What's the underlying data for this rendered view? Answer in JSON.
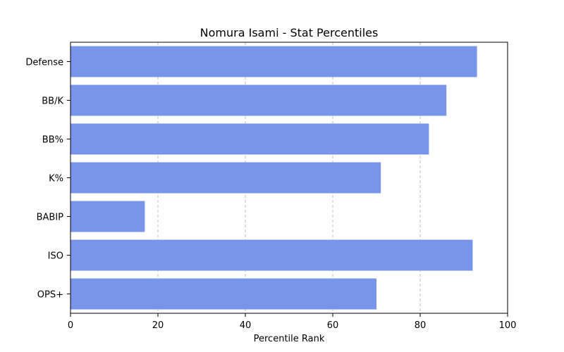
{
  "chart_data": {
    "type": "bar",
    "orientation": "horizontal",
    "title": "Nomura Isami - Stat Percentiles",
    "xlabel": "Percentile Rank",
    "ylabel": "",
    "categories": [
      "Defense",
      "BB/K",
      "BB%",
      "K%",
      "BABIP",
      "ISO",
      "OPS+"
    ],
    "values": [
      93,
      86,
      82,
      71,
      17,
      92,
      70
    ],
    "xlim": [
      0,
      100
    ],
    "xticks": [
      "0",
      "20",
      "40",
      "60",
      "80",
      "100"
    ],
    "grid": "x-dashed",
    "bar_color": "#7995e9"
  }
}
